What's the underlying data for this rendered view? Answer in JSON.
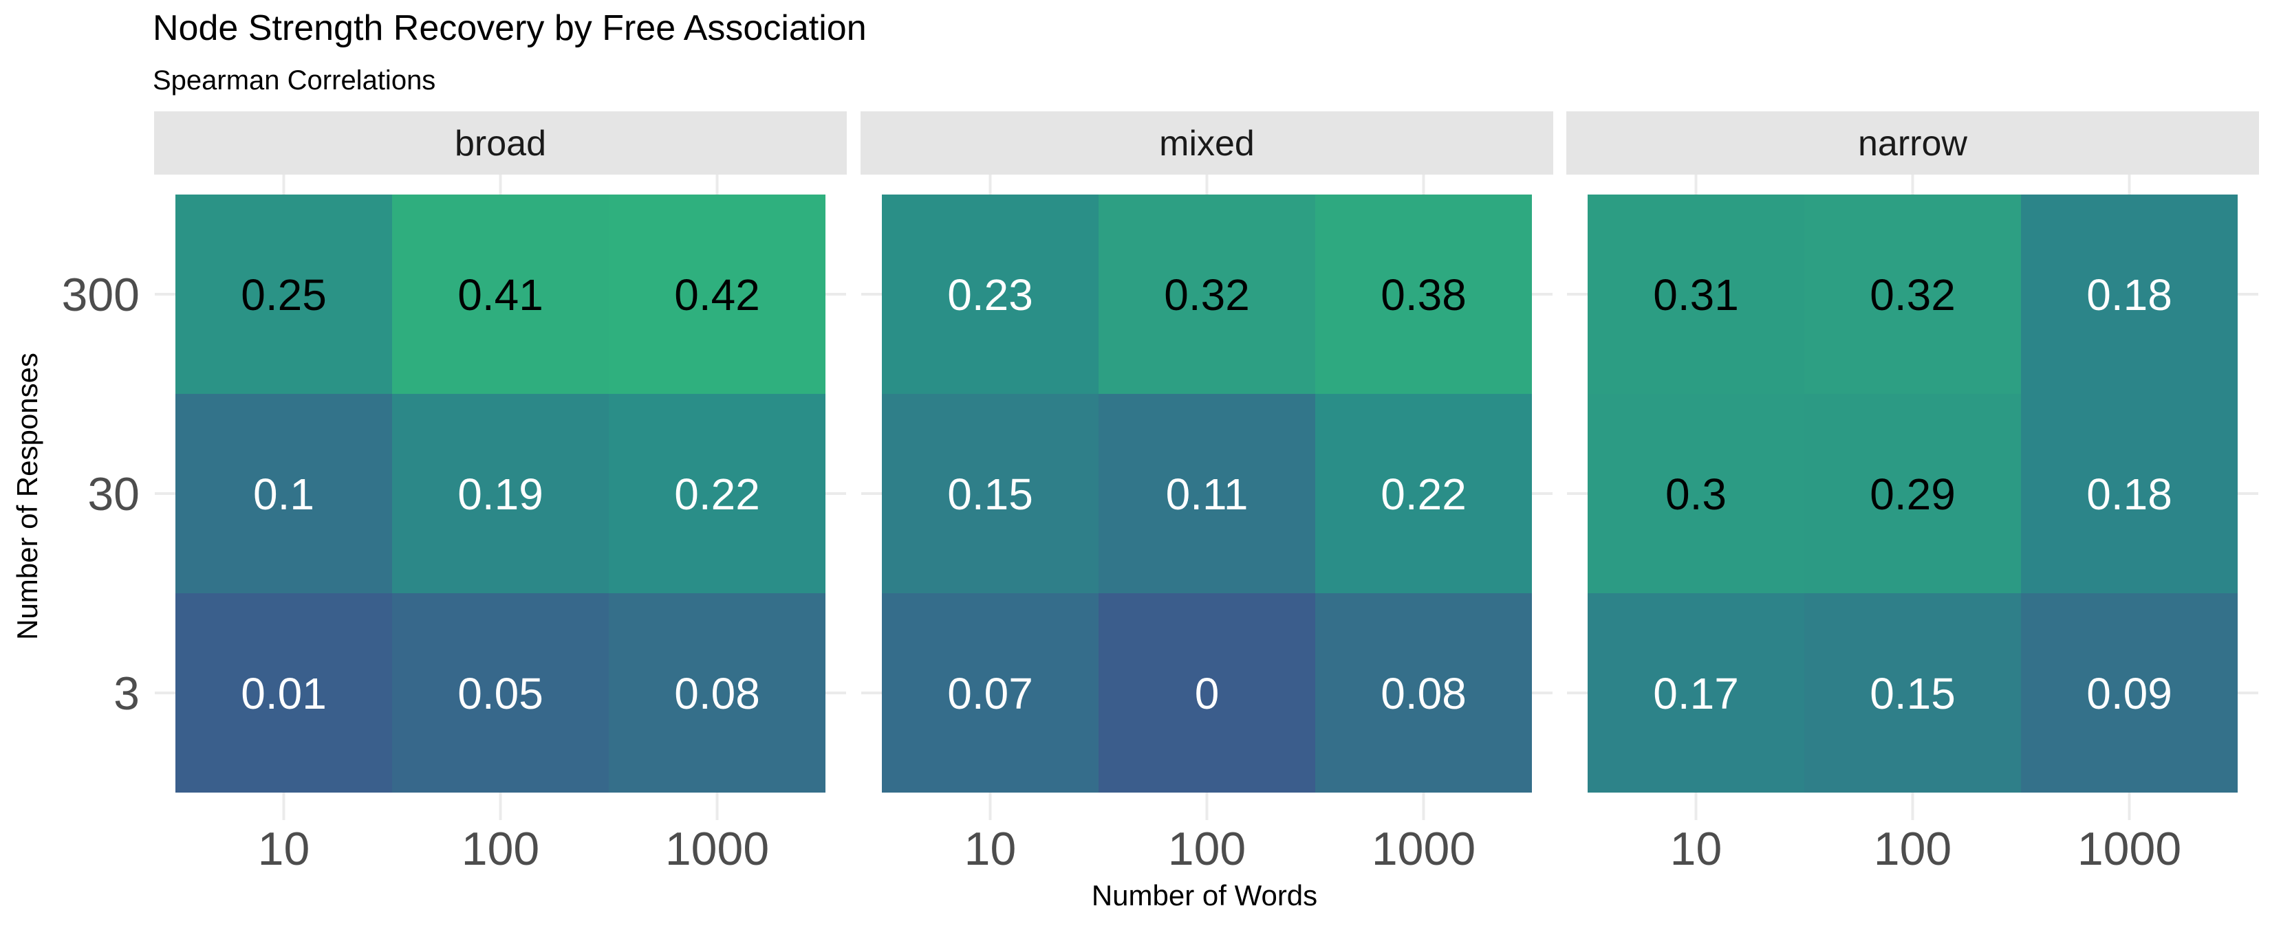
{
  "chart_data": {
    "type": "heatmap",
    "title": "Node Strength Recovery by Free Association",
    "subtitle": "Spearman Correlations",
    "xlabel": "Number of Words",
    "ylabel": "Number of Responses",
    "x_categories": [
      "10",
      "100",
      "1000"
    ],
    "y_categories": [
      "300",
      "30",
      "3"
    ],
    "facets": [
      {
        "name": "broad",
        "values": [
          [
            0.25,
            0.41,
            0.42
          ],
          [
            0.1,
            0.19,
            0.22
          ],
          [
            0.01,
            0.05,
            0.08
          ]
        ]
      },
      {
        "name": "mixed",
        "values": [
          [
            0.23,
            0.32,
            0.38
          ],
          [
            0.15,
            0.11,
            0.22
          ],
          [
            0.07,
            0,
            0.08
          ]
        ]
      },
      {
        "name": "narrow",
        "values": [
          [
            0.31,
            0.32,
            0.18
          ],
          [
            0.3,
            0.29,
            0.18
          ],
          [
            0.17,
            0.15,
            0.09
          ]
        ]
      }
    ],
    "color_scale": {
      "low": "#3b5d8c",
      "mid": "#2a8c88",
      "high": "#2fb07e",
      "domain": [
        0,
        0.42
      ]
    },
    "label_colors": {
      "light": "#ffffff",
      "dark": "#000000"
    },
    "strip_background": "#e5e5e5",
    "grid_color": "#ebebeb"
  }
}
